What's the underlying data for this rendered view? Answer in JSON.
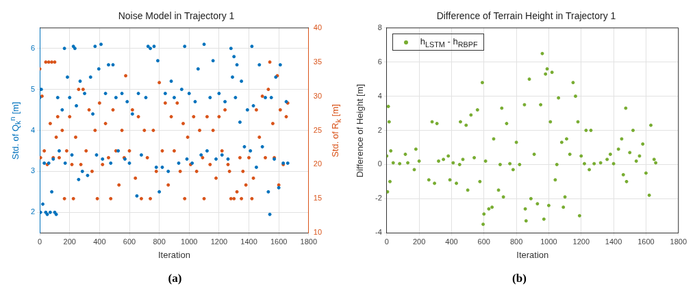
{
  "chart_data": [
    {
      "type": "scatter",
      "title": "Noise Model in Trajectory 1",
      "xlabel": "Iteration",
      "ylabel": "Std. of Q$_{k}$$^{n}$ [m]",
      "y2label": "Std. of R$_{k}$ [m]",
      "annotations": [
        "(a)"
      ],
      "xlim": [
        0,
        1800
      ],
      "xticks": [
        0,
        200,
        400,
        600,
        800,
        1000,
        1200,
        1400,
        1600,
        1800
      ],
      "ylim": [
        1.5,
        6.5
      ],
      "yticks": [
        2,
        3,
        4,
        5,
        6
      ],
      "y2lim": [
        10,
        40
      ],
      "y2ticks": [
        10,
        15,
        20,
        25,
        30,
        35,
        40
      ],
      "grid": true,
      "marker": "circle",
      "series": [
        {
          "color": "#0072bd",
          "x": [
            0,
            5,
            10,
            20,
            30,
            40,
            50,
            60,
            70,
            80,
            90,
            100,
            110,
            120,
            130,
            150,
            165,
            170,
            185,
            200,
            215,
            225,
            235,
            245,
            260,
            270,
            285,
            300,
            320,
            340,
            355,
            370,
            380,
            395,
            410,
            420,
            440,
            460,
            475,
            490,
            510,
            525,
            550,
            570,
            585,
            600,
            620,
            650,
            660,
            680,
            710,
            725,
            740,
            765,
            780,
            790,
            800,
            820,
            840,
            860,
            880,
            900,
            930,
            950,
            970,
            985,
            1000,
            1020,
            1040,
            1060,
            1080,
            1100,
            1120,
            1140,
            1160,
            1180,
            1200,
            1220,
            1240,
            1260,
            1280,
            1290,
            1300,
            1310,
            1320,
            1340,
            1350,
            1370,
            1390,
            1410,
            1420,
            1430,
            1450,
            1470,
            1490,
            1510,
            1530,
            1540,
            1550,
            1570,
            1580,
            1600,
            1610,
            1630,
            1650,
            1660
          ],
          "values": [
            4.8,
            2,
            5,
            2.2,
            3.2,
            2,
            1.95,
            3.2,
            2,
            2.5,
            3.3,
            2,
            1.95,
            4.8,
            3.5,
            4.5,
            6,
            3.2,
            5.3,
            4.8,
            3.4,
            6.05,
            6,
            4.6,
            2.8,
            5.2,
            3,
            4.9,
            2.9,
            5.3,
            4.4,
            6.05,
            3.4,
            5.5,
            6.1,
            3.3,
            4.9,
            5.6,
            3.2,
            5.6,
            4.8,
            3.5,
            4.9,
            3.3,
            4.7,
            3.2,
            4.4,
            2.4,
            4.9,
            3.4,
            4.8,
            6.05,
            6,
            6.05,
            3.1,
            5.7,
            2.5,
            3.1,
            4.9,
            3,
            5.2,
            4.8,
            3.2,
            5,
            6.05,
            3.3,
            4.9,
            3.2,
            4.7,
            5.5,
            3.4,
            6.1,
            3.5,
            4.8,
            5.7,
            3.3,
            4.9,
            3.4,
            4.7,
            3.3,
            6,
            5.3,
            5.8,
            4.8,
            5.6,
            4.2,
            5.2,
            3.6,
            4.5,
            3.5,
            6.05,
            4.6,
            3.1,
            5.6,
            3.6,
            4.8,
            2.5,
            1.95,
            4.8,
            3.3,
            5.3,
            2.6,
            5.6,
            3.2,
            4.7,
            3.2
          ]
        },
        {
          "color": "#d95319",
          "axis": "y2",
          "x": [
            0,
            5,
            15,
            30,
            40,
            50,
            60,
            70,
            80,
            90,
            100,
            110,
            120,
            130,
            150,
            165,
            180,
            200,
            215,
            225,
            240,
            260,
            275,
            290,
            310,
            330,
            350,
            370,
            385,
            400,
            420,
            440,
            460,
            475,
            490,
            510,
            530,
            550,
            565,
            575,
            600,
            620,
            640,
            660,
            680,
            700,
            720,
            740,
            760,
            780,
            800,
            820,
            840,
            860,
            880,
            900,
            920,
            940,
            960,
            970,
            990,
            1010,
            1030,
            1050,
            1070,
            1090,
            1100,
            1120,
            1140,
            1160,
            1180,
            1200,
            1220,
            1240,
            1260,
            1270,
            1280,
            1300,
            1320,
            1340,
            1350,
            1360,
            1380,
            1400,
            1420,
            1430,
            1450,
            1470,
            1490,
            1510,
            1530,
            1540,
            1560,
            1570,
            1590,
            1600,
            1610,
            1630,
            1650,
            1660
          ],
          "values": [
            34,
            21,
            30,
            22,
            35,
            20,
            35,
            26,
            35,
            21,
            35,
            24,
            27,
            21,
            25,
            15,
            22,
            27,
            20,
            15,
            24,
            31,
            20,
            31,
            22,
            28,
            19,
            25,
            15,
            29,
            20,
            26,
            21,
            15,
            28,
            22,
            17,
            25,
            21,
            33,
            22,
            28,
            18,
            27,
            15,
            25,
            21,
            15,
            25,
            19,
            32,
            22,
            29,
            17,
            27,
            22,
            29,
            19,
            26,
            15,
            24,
            20,
            27,
            19,
            25,
            21,
            15,
            27,
            20,
            25,
            18,
            27,
            22,
            28,
            20,
            19,
            15,
            15,
            16,
            21,
            15,
            19,
            17,
            21,
            15,
            18,
            28,
            24,
            30,
            21,
            31,
            35,
            26,
            21,
            33,
            17,
            28,
            20,
            27,
            29
          ]
        }
      ]
    },
    {
      "type": "scatter",
      "title": "Difference of Terrain Height in Trajectory 1",
      "xlabel": "Iteration",
      "ylabel": "Difference of Height [m]",
      "annotations": [
        "(b)"
      ],
      "xlim": [
        0,
        1800
      ],
      "xticks": [
        0,
        200,
        400,
        600,
        800,
        1000,
        1200,
        1400,
        1600,
        1800
      ],
      "ylim": [
        -4,
        8
      ],
      "yticks": [
        -4,
        -2,
        0,
        2,
        4,
        6,
        8
      ],
      "grid": true,
      "legend": "top left",
      "marker": "circle",
      "series": [
        {
          "name": "h$_{LSTM}$ - h$_{RBPF}$",
          "color": "#77ac30",
          "x": [
            0,
            5,
            10,
            15,
            20,
            25,
            40,
            80,
            115,
            130,
            170,
            180,
            200,
            260,
            280,
            295,
            310,
            320,
            350,
            380,
            390,
            410,
            430,
            450,
            455,
            470,
            490,
            500,
            520,
            540,
            560,
            575,
            590,
            595,
            600,
            610,
            630,
            650,
            660,
            690,
            700,
            710,
            720,
            740,
            760,
            780,
            800,
            820,
            850,
            855,
            860,
            880,
            890,
            910,
            930,
            950,
            960,
            970,
            980,
            990,
            1000,
            1010,
            1020,
            1040,
            1050,
            1060,
            1080,
            1090,
            1100,
            1110,
            1130,
            1150,
            1165,
            1180,
            1190,
            1200,
            1220,
            1230,
            1250,
            1260,
            1280,
            1320,
            1360,
            1380,
            1400,
            1430,
            1450,
            1460,
            1475,
            1480,
            1500,
            1520,
            1540,
            1560,
            1580,
            1600,
            1620,
            1630,
            1650,
            1660
          ],
          "values": [
            0.5,
            -1.6,
            3.4,
            2.5,
            -1,
            0.8,
            0.1,
            0.05,
            0.6,
            0.1,
            -0.3,
            0.9,
            0.2,
            -0.9,
            2.5,
            -1.1,
            2.4,
            0.2,
            0.3,
            0.5,
            -0.9,
            0.1,
            -1.1,
            0,
            2.5,
            0.3,
            2.3,
            -1.5,
            2.9,
            0.4,
            3.2,
            -1,
            4.8,
            -3.5,
            -2.9,
            0.2,
            -2.6,
            -2.5,
            1.5,
            -1.5,
            0,
            3.3,
            -1.9,
            2.4,
            0.05,
            -0.3,
            1.3,
            0,
            3.5,
            -2.6,
            -3.3,
            5,
            -2,
            0.6,
            -2.3,
            3.5,
            6.5,
            -3.2,
            5.3,
            5.6,
            -2.4,
            2.5,
            5.4,
            -0.9,
            0,
            3.9,
            1.3,
            -2.5,
            -1.9,
            1.5,
            0.6,
            4.8,
            4,
            2.5,
            -3,
            0.5,
            0.05,
            2,
            -0.3,
            2,
            0.05,
            0.1,
            0.3,
            0.6,
            0.05,
            0.9,
            1.5,
            -0.6,
            3.3,
            -1,
            0.7,
            2,
            0.2,
            0.5,
            1.2,
            -0.5,
            -1.8,
            2.3,
            0.3,
            0.1
          ]
        }
      ]
    }
  ]
}
